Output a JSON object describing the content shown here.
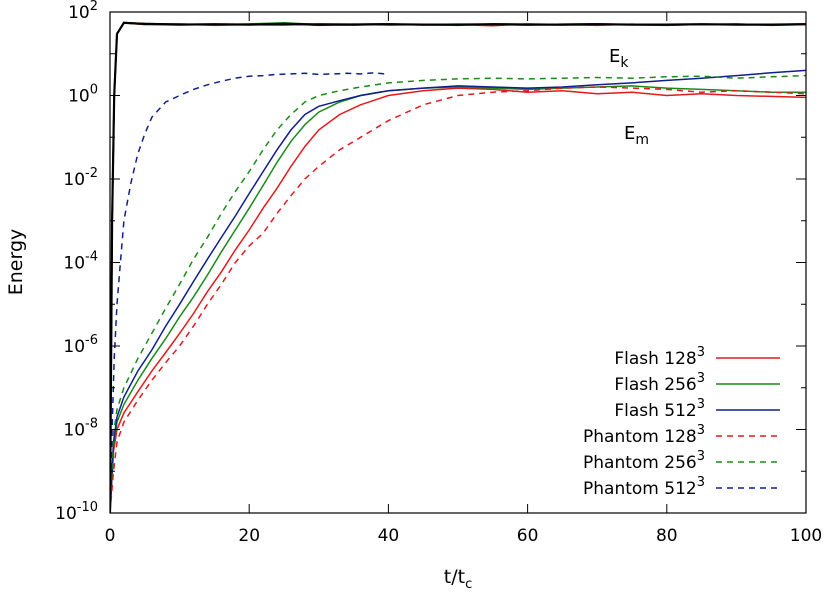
{
  "chart_data": {
    "type": "line",
    "xlabel": "t/t",
    "xlabel_sub": "c",
    "ylabel": "Energy",
    "xlim": [
      0,
      100
    ],
    "ylim": [
      1e-10,
      100
    ],
    "y_scale": "log",
    "grid": false,
    "legend_position": "bottom-right",
    "x_ticks": [
      {
        "value": 0,
        "label": "0"
      },
      {
        "value": 20,
        "label": "20"
      },
      {
        "value": 40,
        "label": "40"
      },
      {
        "value": 60,
        "label": "60"
      },
      {
        "value": 80,
        "label": "80"
      },
      {
        "value": 100,
        "label": "100"
      }
    ],
    "y_ticks": [
      {
        "exp": -10,
        "base": "10",
        "sup": "-10"
      },
      {
        "exp": -8,
        "base": "10",
        "sup": "-8"
      },
      {
        "exp": -6,
        "base": "10",
        "sup": "-6"
      },
      {
        "exp": -4,
        "base": "10",
        "sup": "-4"
      },
      {
        "exp": -2,
        "base": "10",
        "sup": "-2"
      },
      {
        "exp": 0,
        "base": "10",
        "sup": "0"
      },
      {
        "exp": 2,
        "base": "10",
        "sup": "2"
      }
    ],
    "annotations": [
      {
        "base": "E",
        "sub": "k"
      },
      {
        "base": "E",
        "sub": "m"
      }
    ],
    "series": [
      {
        "name": "Flash 128",
        "sup": "3",
        "color": "#e31a1c",
        "dash": "solid",
        "quantity": "E_m",
        "x": [
          0,
          0.5,
          1,
          2,
          4,
          6,
          8,
          10,
          12,
          14,
          16,
          18,
          20,
          22,
          24,
          26,
          28,
          30,
          33,
          36,
          40,
          45,
          50,
          55,
          60,
          65,
          70,
          75,
          80,
          85,
          90,
          95,
          100
        ],
        "y": [
          1e-10,
          3e-09,
          1e-08,
          2.5e-08,
          8e-08,
          2.5e-07,
          7e-07,
          2e-06,
          6e-06,
          2e-05,
          6e-05,
          0.0002,
          0.0006,
          0.002,
          0.006,
          0.02,
          0.06,
          0.15,
          0.35,
          0.6,
          1.0,
          1.3,
          1.5,
          1.4,
          1.2,
          1.3,
          1.1,
          1.2,
          1.0,
          1.1,
          1.0,
          0.95,
          0.9
        ]
      },
      {
        "name": "Flash 256",
        "sup": "3",
        "color": "#1a8a1a",
        "dash": "solid",
        "quantity": "E_m",
        "x": [
          0,
          0.5,
          1,
          2,
          4,
          6,
          8,
          10,
          12,
          14,
          16,
          18,
          20,
          22,
          24,
          26,
          28,
          30,
          33,
          36,
          40,
          45,
          50,
          55,
          60,
          65,
          70,
          75,
          80,
          85,
          90,
          95,
          100
        ],
        "y": [
          1e-10,
          4e-09,
          1.5e-08,
          4e-08,
          1.5e-07,
          5e-07,
          1.5e-06,
          5e-06,
          1.5e-05,
          5e-05,
          0.00018,
          0.0006,
          0.002,
          0.007,
          0.025,
          0.08,
          0.2,
          0.4,
          0.7,
          1.0,
          1.3,
          1.5,
          1.6,
          1.5,
          1.4,
          1.5,
          1.6,
          1.7,
          1.5,
          1.4,
          1.3,
          1.2,
          1.2
        ]
      },
      {
        "name": "Flash 512",
        "sup": "3",
        "color": "#0f1f8c",
        "dash": "solid",
        "quantity": "E_m",
        "x": [
          0,
          0.5,
          1,
          2,
          4,
          6,
          8,
          10,
          12,
          14,
          16,
          18,
          20,
          22,
          24,
          26,
          28,
          30,
          33,
          36,
          40,
          45,
          50,
          55,
          60,
          65,
          70,
          75,
          80,
          85,
          90,
          95,
          100
        ],
        "y": [
          1e-10,
          5e-09,
          2e-08,
          6e-08,
          2.5e-07,
          8e-07,
          3e-06,
          1e-05,
          3.5e-05,
          0.00012,
          0.0004,
          0.0013,
          0.0045,
          0.015,
          0.05,
          0.15,
          0.35,
          0.55,
          0.75,
          1.0,
          1.3,
          1.5,
          1.7,
          1.6,
          1.5,
          1.6,
          1.8,
          2.0,
          2.3,
          2.6,
          3.0,
          3.5,
          4.0
        ]
      },
      {
        "name": "Phantom 128",
        "sup": "3",
        "color": "#e31a1c",
        "dash": "dashed",
        "quantity": "E_m",
        "x": [
          0,
          0.5,
          1,
          2,
          4,
          6,
          8,
          10,
          12,
          14,
          16,
          18,
          20,
          22,
          24,
          26,
          28,
          30,
          33,
          36,
          40,
          45,
          50,
          55,
          60,
          65,
          70,
          75,
          80,
          85,
          90,
          95,
          100
        ],
        "y": [
          1e-10,
          1e-09,
          5e-09,
          1.5e-08,
          5e-08,
          1.5e-07,
          4e-07,
          1e-06,
          3e-06,
          1e-05,
          3e-05,
          0.0001,
          0.00025,
          0.0005,
          0.0015,
          0.004,
          0.01,
          0.02,
          0.05,
          0.1,
          0.25,
          0.6,
          1.0,
          1.2,
          1.3,
          1.5,
          1.6,
          1.5,
          1.4,
          1.2,
          1.3,
          1.2,
          1.1
        ]
      },
      {
        "name": "Phantom 256",
        "sup": "3",
        "color": "#1a8a1a",
        "dash": "dashed",
        "quantity": "E_m",
        "x": [
          0,
          0.5,
          1,
          2,
          4,
          6,
          8,
          10,
          12,
          14,
          16,
          18,
          20,
          22,
          24,
          26,
          28,
          30,
          33,
          36,
          40,
          45,
          50,
          55,
          60,
          65,
          70,
          75,
          80,
          85,
          90,
          95,
          100
        ],
        "y": [
          1e-10,
          8e-09,
          3e-08,
          1e-07,
          5e-07,
          2e-06,
          8e-06,
          3e-05,
          0.00012,
          0.0004,
          0.0015,
          0.005,
          0.015,
          0.05,
          0.15,
          0.35,
          0.7,
          1.0,
          1.3,
          1.6,
          2.0,
          2.3,
          2.5,
          2.6,
          2.5,
          2.6,
          2.7,
          2.6,
          2.8,
          2.9,
          2.6,
          2.8,
          3.0
        ]
      },
      {
        "name": "Phantom 512",
        "sup": "3",
        "color": "#0f1f8c",
        "dash": "dashed",
        "quantity": "E_m",
        "x": [
          0,
          0.3,
          0.6,
          1,
          1.5,
          2,
          3,
          4,
          5,
          6,
          8,
          10,
          12,
          14,
          16,
          18,
          20,
          22,
          24,
          26,
          28,
          30,
          32,
          34,
          36,
          38,
          40
        ],
        "y": [
          1e-10,
          1e-08,
          5e-07,
          1e-05,
          0.0001,
          0.001,
          0.008,
          0.04,
          0.12,
          0.3,
          0.7,
          1.0,
          1.4,
          1.8,
          2.2,
          2.6,
          2.9,
          3.0,
          3.2,
          3.3,
          3.4,
          3.2,
          3.3,
          3.4,
          3.3,
          3.5,
          3.2
        ]
      }
    ],
    "kinetic_curves": [
      {
        "color": "#e31a1c",
        "quantity": "E_k",
        "x": [
          0,
          0.3,
          0.6,
          1,
          2,
          5,
          10,
          15,
          20,
          25,
          30,
          35,
          40,
          45,
          50,
          55,
          60,
          65,
          70,
          75,
          80,
          85,
          90,
          95,
          100
        ],
        "y": [
          1e-10,
          0.001,
          1,
          30,
          55,
          50,
          52,
          48,
          50,
          53,
          48,
          51,
          52,
          49,
          50,
          47,
          52,
          50,
          48,
          51,
          49,
          50,
          52,
          48,
          50
        ]
      },
      {
        "color": "#1a8a1a",
        "quantity": "E_k",
        "x": [
          0,
          0.3,
          0.6,
          1,
          2,
          5,
          10,
          15,
          20,
          25,
          30,
          35,
          40,
          45,
          50,
          55,
          60,
          65,
          70,
          75,
          80,
          85,
          90,
          95,
          100
        ],
        "y": [
          1e-10,
          0.001,
          1,
          30,
          55,
          51,
          50,
          49,
          52,
          55,
          50,
          49,
          51,
          50,
          48,
          52,
          51,
          49,
          50,
          50,
          48,
          51,
          50,
          49,
          51
        ]
      },
      {
        "color": "#0f1f8c",
        "quantity": "E_k",
        "x": [
          0,
          0.3,
          0.6,
          1,
          2,
          5,
          10,
          15,
          20,
          25,
          30,
          35,
          40,
          45,
          50,
          55,
          60,
          65,
          70,
          75,
          80,
          85,
          90,
          95,
          100
        ],
        "y": [
          1e-10,
          0.001,
          1,
          30,
          55,
          53,
          51,
          50,
          50,
          49,
          52,
          51,
          49,
          50,
          51,
          50,
          49,
          51,
          52,
          50,
          49,
          50,
          51,
          50,
          52
        ]
      },
      {
        "color": "#000000",
        "quantity": "E_k",
        "x": [
          0,
          0.3,
          0.6,
          1,
          2,
          5,
          10,
          15,
          20,
          25,
          30,
          35,
          40,
          45,
          50,
          55,
          60,
          65,
          70,
          75,
          80,
          85,
          90,
          95,
          100
        ],
        "y": [
          1e-10,
          0.001,
          1,
          30,
          55,
          52,
          50,
          51,
          50,
          52,
          50,
          50,
          51,
          50,
          50,
          51,
          50,
          50,
          51,
          50,
          50,
          51,
          50,
          50,
          51
        ]
      }
    ]
  }
}
